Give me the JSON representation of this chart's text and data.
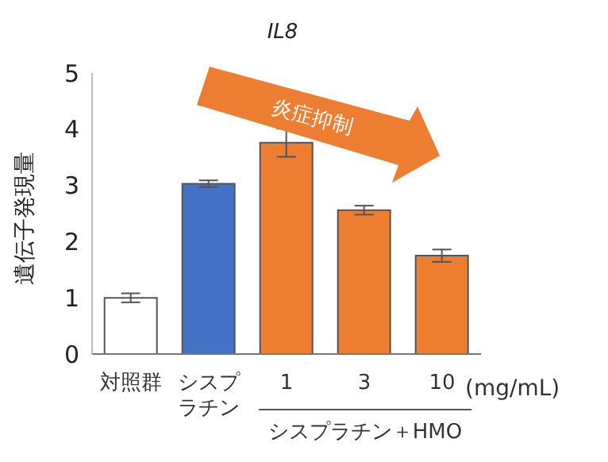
{
  "chart_data": {
    "type": "bar",
    "title": "IL8",
    "ylabel": "遺伝子発現量",
    "categories": [
      "対照群",
      "シスプラチン",
      "1",
      "3",
      "10"
    ],
    "values": [
      1.0,
      3.03,
      3.76,
      2.56,
      1.75
    ],
    "errors": [
      0.08,
      0.06,
      0.25,
      0.08,
      0.11
    ],
    "colors": [
      "#ffffff",
      "#4472c4",
      "#ed7d31",
      "#ed7d31",
      "#ed7d31"
    ],
    "ylim": [
      0,
      5
    ],
    "yticks": [
      0,
      1,
      2,
      3,
      4,
      5
    ],
    "grid": false,
    "legend": false,
    "annotations": [
      "炎症抑制",
      "(mg/mL)",
      "シスプラチン＋HMO"
    ]
  }
}
